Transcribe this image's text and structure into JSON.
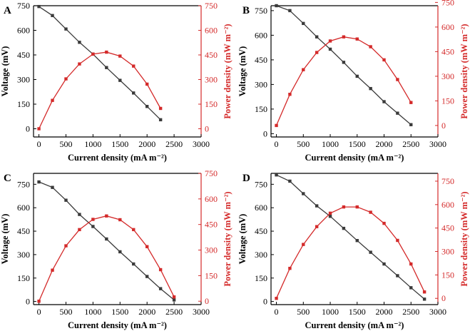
{
  "colors": {
    "voltage": "#3a3a3a",
    "power": "#d42a2a",
    "axis": "#000000"
  },
  "chart_data": [
    {
      "panel": "A",
      "type": "line",
      "xlabel": "Current density (mA m⁻²)",
      "ylabel_left": "Voltage (mV)",
      "ylabel_right": "Power density (mW m⁻²)",
      "xlim": [
        -100,
        3000
      ],
      "xticks": [
        0,
        500,
        1000,
        1500,
        2000,
        2500,
        3000
      ],
      "ylim_left": [
        -50,
        750
      ],
      "yticks_left": [
        0,
        150,
        300,
        450,
        600,
        750
      ],
      "ylim_right": [
        -50,
        750
      ],
      "yticks_right": [
        0,
        150,
        300,
        450,
        600,
        750
      ],
      "series": [
        {
          "axis": "left",
          "marker": "square",
          "color": "#3a3a3a",
          "x": [
            0,
            250,
            500,
            750,
            1000,
            1250,
            1500,
            1750,
            2000,
            2250
          ],
          "y": [
            745,
            690,
            608,
            527,
            455,
            373,
            295,
            218,
            136,
            55
          ]
        },
        {
          "axis": "right",
          "marker": "square",
          "color": "#d42a2a",
          "x": [
            0,
            250,
            500,
            750,
            1000,
            1250,
            1500,
            1750,
            2000,
            2250
          ],
          "y": [
            0,
            173,
            304,
            395,
            455,
            467,
            443,
            382,
            272,
            124
          ]
        }
      ]
    },
    {
      "panel": "B",
      "type": "line",
      "xlabel": "Current density (mA m⁻²)",
      "ylabel_left": "Voltage (mV)",
      "ylabel_right": "Power density (mW m⁻²)",
      "xlim": [
        -100,
        3000
      ],
      "xticks": [
        0,
        500,
        1000,
        1500,
        2000,
        2500,
        3000
      ],
      "ylim_left": [
        -20,
        780
      ],
      "yticks_left": [
        0,
        150,
        300,
        450,
        600,
        750
      ],
      "ylim_right": [
        -70,
        730
      ],
      "yticks_right": [
        0,
        150,
        300,
        450,
        600,
        750
      ],
      "series": [
        {
          "axis": "left",
          "marker": "square",
          "color": "#3a3a3a",
          "x": [
            0,
            250,
            500,
            750,
            1000,
            1250,
            1500,
            1750,
            2000,
            2250,
            2500
          ],
          "y": [
            780,
            750,
            672,
            590,
            515,
            435,
            350,
            275,
            195,
            125,
            55
          ]
        },
        {
          "axis": "right",
          "marker": "square",
          "color": "#d42a2a",
          "x": [
            0,
            250,
            500,
            750,
            1000,
            1250,
            1500,
            1750,
            2000,
            2250,
            2500
          ],
          "y": [
            0,
            190,
            340,
            445,
            515,
            540,
            527,
            480,
            400,
            280,
            140
          ]
        }
      ]
    },
    {
      "panel": "C",
      "type": "line",
      "xlabel": "Current density (mA m⁻²)",
      "ylabel_left": "Voltage (mV)",
      "ylabel_right": "Power density (mW m⁻²)",
      "xlim": [
        -100,
        3000
      ],
      "xticks": [
        0,
        500,
        1000,
        1500,
        2000,
        2500,
        3000
      ],
      "ylim_left": [
        -20,
        820
      ],
      "yticks_left": [
        0,
        150,
        300,
        450,
        600,
        750
      ],
      "ylim_right": [
        -20,
        750
      ],
      "yticks_right": [
        0,
        150,
        300,
        450,
        600,
        750
      ],
      "series": [
        {
          "axis": "left",
          "marker": "square",
          "color": "#3a3a3a",
          "x": [
            0,
            250,
            500,
            750,
            1000,
            1250,
            1500,
            1750,
            2000,
            2250,
            2500
          ],
          "y": [
            765,
            730,
            648,
            557,
            480,
            400,
            318,
            240,
            160,
            82,
            10
          ]
        },
        {
          "axis": "right",
          "marker": "square",
          "color": "#d42a2a",
          "x": [
            0,
            250,
            500,
            750,
            1000,
            1250,
            1500,
            1750,
            2000,
            2250,
            2500
          ],
          "y": [
            0,
            182,
            325,
            420,
            480,
            500,
            478,
            420,
            320,
            185,
            25
          ]
        }
      ]
    },
    {
      "panel": "D",
      "type": "line",
      "xlabel": "Current density (mA m⁻²)",
      "ylabel_left": "Voltage (mV)",
      "ylabel_right": "Power density (mW m⁻²)",
      "xlim": [
        -100,
        3000
      ],
      "xticks": [
        0,
        500,
        1000,
        1500,
        2000,
        2500,
        3000
      ],
      "ylim_left": [
        -20,
        820
      ],
      "yticks_left": [
        0,
        150,
        300,
        450,
        600,
        750
      ],
      "ylim_right": [
        -40,
        800
      ],
      "yticks_right": [
        0,
        150,
        300,
        450,
        600,
        750
      ],
      "series": [
        {
          "axis": "left",
          "marker": "square",
          "color": "#3a3a3a",
          "x": [
            0,
            250,
            500,
            750,
            1000,
            1250,
            1500,
            1750,
            2000,
            2250,
            2500,
            2750
          ],
          "y": [
            810,
            770,
            690,
            612,
            545,
            468,
            390,
            315,
            240,
            165,
            88,
            15
          ]
        },
        {
          "axis": "right",
          "marker": "square",
          "color": "#d42a2a",
          "x": [
            0,
            250,
            500,
            750,
            1000,
            1250,
            1500,
            1750,
            2000,
            2250,
            2500,
            2750
          ],
          "y": [
            0,
            192,
            345,
            459,
            545,
            585,
            585,
            551,
            480,
            371,
            220,
            41
          ]
        }
      ]
    }
  ]
}
